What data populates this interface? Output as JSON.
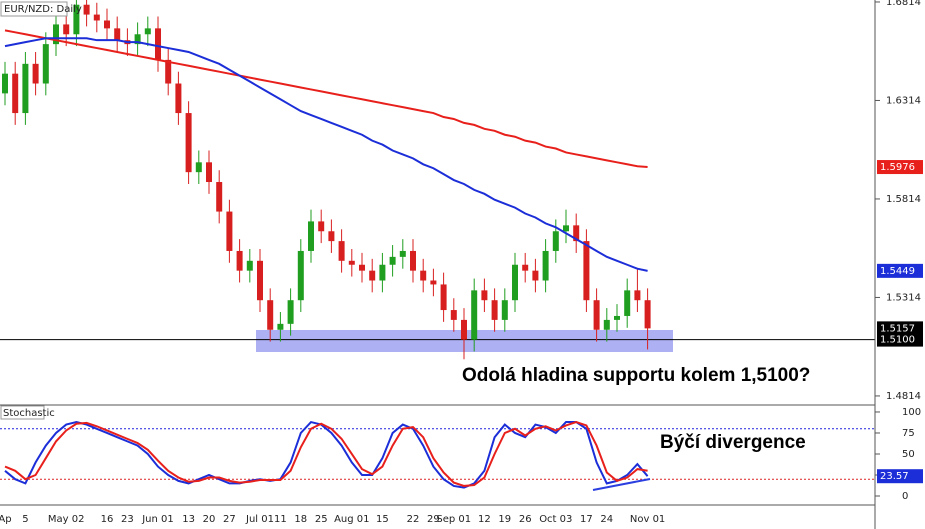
{
  "chart_data": [
    {
      "type": "candlestick",
      "title": "EUR/NZD: Daily",
      "categories": [
        "Ap",
        null,
        "5",
        null,
        null,
        null,
        "May 02",
        null,
        null,
        null,
        "16",
        null,
        "23",
        null,
        null,
        "Jun 01",
        null,
        null,
        "13",
        null,
        "20",
        null,
        "27",
        null,
        null,
        "Jul 01",
        null,
        "11",
        null,
        "18",
        null,
        "25",
        null,
        null,
        "Aug 01",
        null,
        null,
        "15",
        null,
        null,
        "22",
        null,
        "29",
        null,
        "Sep 01",
        null,
        null,
        "12",
        null,
        "19",
        null,
        "26",
        null,
        null,
        "Oct 03",
        null,
        null,
        "17",
        null,
        "24",
        null,
        null,
        null,
        "Nov 01"
      ],
      "open": [
        1.635,
        1.645,
        1.625,
        1.65,
        1.64,
        1.66,
        1.67,
        1.665,
        1.68,
        1.675,
        1.672,
        1.668,
        1.662,
        1.66,
        1.665,
        1.668,
        1.652,
        1.64,
        1.625,
        1.595,
        1.6,
        1.59,
        1.575,
        1.555,
        1.545,
        1.55,
        1.53,
        1.515,
        1.518,
        1.53,
        1.555,
        1.57,
        1.565,
        1.56,
        1.55,
        1.548,
        1.545,
        1.54,
        1.548,
        1.552,
        1.555,
        1.545,
        1.54,
        1.538,
        1.525,
        1.52,
        1.51,
        1.535,
        1.53,
        1.52,
        1.53,
        1.548,
        1.545,
        1.54,
        1.555,
        1.565,
        1.568,
        1.56,
        1.53,
        1.515,
        1.52,
        1.522,
        1.535,
        1.53
      ],
      "high": [
        1.651,
        1.651,
        1.656,
        1.656,
        1.666,
        1.676,
        1.676,
        1.686,
        1.686,
        1.681,
        1.678,
        1.674,
        1.668,
        1.671,
        1.674,
        1.674,
        1.658,
        1.646,
        1.631,
        1.606,
        1.606,
        1.596,
        1.581,
        1.561,
        1.556,
        1.556,
        1.536,
        1.524,
        1.536,
        1.561,
        1.576,
        1.576,
        1.571,
        1.566,
        1.556,
        1.554,
        1.551,
        1.554,
        1.558,
        1.561,
        1.561,
        1.551,
        1.546,
        1.544,
        1.531,
        1.526,
        1.541,
        1.541,
        1.536,
        1.536,
        1.554,
        1.554,
        1.551,
        1.561,
        1.571,
        1.576,
        1.574,
        1.566,
        1.536,
        1.526,
        1.528,
        1.541,
        1.546,
        1.536
      ],
      "low": [
        1.629,
        1.619,
        1.619,
        1.634,
        1.634,
        1.654,
        1.659,
        1.659,
        1.669,
        1.666,
        1.662,
        1.656,
        1.654,
        1.654,
        1.659,
        1.646,
        1.634,
        1.619,
        1.589,
        1.589,
        1.584,
        1.569,
        1.549,
        1.539,
        1.539,
        1.524,
        1.509,
        1.509,
        1.512,
        1.524,
        1.549,
        1.559,
        1.554,
        1.544,
        1.542,
        1.539,
        1.534,
        1.534,
        1.542,
        1.546,
        1.539,
        1.534,
        1.532,
        1.519,
        1.514,
        1.5,
        1.504,
        1.524,
        1.514,
        1.514,
        1.524,
        1.539,
        1.534,
        1.534,
        1.549,
        1.559,
        1.554,
        1.524,
        1.509,
        1.509,
        1.514,
        1.516,
        1.524,
        1.505
      ],
      "close": [
        1.645,
        1.625,
        1.65,
        1.64,
        1.66,
        1.67,
        1.665,
        1.68,
        1.675,
        1.672,
        1.668,
        1.662,
        1.66,
        1.665,
        1.668,
        1.652,
        1.64,
        1.625,
        1.595,
        1.6,
        1.59,
        1.575,
        1.555,
        1.545,
        1.55,
        1.53,
        1.515,
        1.518,
        1.53,
        1.555,
        1.57,
        1.565,
        1.56,
        1.55,
        1.548,
        1.545,
        1.54,
        1.548,
        1.552,
        1.555,
        1.545,
        1.54,
        1.538,
        1.525,
        1.52,
        1.51,
        1.535,
        1.53,
        1.52,
        1.53,
        1.548,
        1.545,
        1.54,
        1.555,
        1.565,
        1.568,
        1.56,
        1.53,
        1.515,
        1.52,
        1.522,
        1.535,
        1.53,
        1.5157
      ],
      "up_color": "#1f9e1f",
      "down_color": "#d81f1f",
      "series": [
        {
          "color": "#e8201c",
          "values": [
            1.667,
            1.666,
            1.665,
            1.664,
            1.663,
            1.662,
            1.661,
            1.66,
            1.659,
            1.658,
            1.657,
            1.656,
            1.655,
            1.654,
            1.653,
            1.652,
            1.651,
            1.65,
            1.649,
            1.648,
            1.647,
            1.646,
            1.645,
            1.644,
            1.643,
            1.642,
            1.641,
            1.64,
            1.639,
            1.638,
            1.637,
            1.636,
            1.635,
            1.634,
            1.633,
            1.632,
            1.631,
            1.63,
            1.629,
            1.628,
            1.627,
            1.626,
            1.625,
            1.623,
            1.622,
            1.62,
            1.619,
            1.617,
            1.616,
            1.614,
            1.613,
            1.611,
            1.61,
            1.608,
            1.607,
            1.605,
            1.604,
            1.603,
            1.602,
            1.601,
            1.6,
            1.599,
            1.598,
            1.5976
          ]
        },
        {
          "color": "#1c2ed8",
          "values": [
            1.659,
            1.66,
            1.661,
            1.662,
            1.663,
            1.663,
            1.663,
            1.663,
            1.663,
            1.662,
            1.662,
            1.662,
            1.661,
            1.661,
            1.66,
            1.659,
            1.658,
            1.657,
            1.656,
            1.654,
            1.652,
            1.65,
            1.647,
            1.644,
            1.641,
            1.638,
            1.635,
            1.632,
            1.629,
            1.626,
            1.624,
            1.622,
            1.62,
            1.618,
            1.616,
            1.614,
            1.611,
            1.609,
            1.606,
            1.604,
            1.602,
            1.599,
            1.597,
            1.594,
            1.591,
            1.589,
            1.586,
            1.584,
            1.581,
            1.579,
            1.577,
            1.574,
            1.572,
            1.569,
            1.567,
            1.564,
            1.561,
            1.558,
            1.555,
            1.552,
            1.55,
            1.548,
            1.546,
            1.5449
          ]
        }
      ],
      "support_level": {
        "value": 1.51,
        "label": "1.5100"
      },
      "ylim": [
        1.4768,
        1.6824
      ],
      "yticks": [
        1.6814,
        1.6314,
        1.5814,
        1.5314,
        1.4814
      ],
      "annotation": "Odolá hladina supportu kolem 1,5100?"
    },
    {
      "type": "line",
      "title": "Stochastic",
      "series": [
        {
          "color": "#1c2ed8",
          "values": [
            30,
            20,
            15,
            40,
            60,
            75,
            85,
            88,
            85,
            80,
            75,
            70,
            65,
            60,
            50,
            35,
            25,
            18,
            15,
            20,
            25,
            20,
            15,
            15,
            18,
            20,
            18,
            20,
            40,
            75,
            88,
            85,
            75,
            60,
            40,
            25,
            25,
            45,
            75,
            85,
            80,
            60,
            35,
            20,
            12,
            10,
            15,
            30,
            70,
            85,
            75,
            70,
            85,
            82,
            75,
            88,
            88,
            80,
            40,
            15,
            18,
            25,
            38,
            23.57
          ]
        },
        {
          "color": "#e8201c",
          "values": [
            35,
            30,
            20,
            25,
            45,
            65,
            78,
            86,
            87,
            83,
            78,
            73,
            68,
            63,
            55,
            42,
            30,
            22,
            17,
            18,
            22,
            22,
            18,
            16,
            17,
            19,
            19,
            19,
            30,
            58,
            80,
            86,
            80,
            68,
            50,
            32,
            26,
            35,
            60,
            80,
            82,
            70,
            45,
            28,
            16,
            12,
            13,
            22,
            50,
            75,
            80,
            72,
            80,
            83,
            78,
            84,
            88,
            84,
            60,
            28,
            18,
            22,
            32,
            30
          ]
        }
      ],
      "levels": [
        80,
        20
      ],
      "ylim": [
        -10.7,
        108.3
      ],
      "yticks": [
        0,
        25,
        50,
        75,
        100
      ],
      "annotation": "Býčí divergence"
    }
  ]
}
